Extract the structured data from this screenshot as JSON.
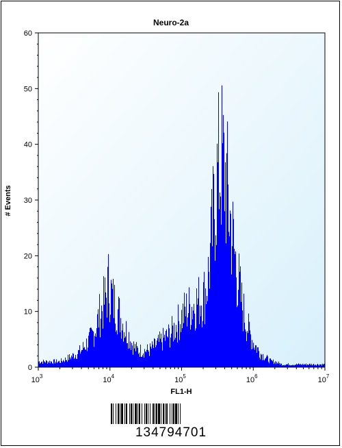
{
  "chart_data": {
    "type": "area",
    "title": "Neuro-2a",
    "xlabel": "FL1-H",
    "ylabel": "# Events",
    "xscale": "log",
    "xlim": [
      1000,
      10000000
    ],
    "ylim": [
      0,
      60
    ],
    "yticks": [
      "0",
      "10",
      "20",
      "30",
      "40",
      "50",
      "60"
    ],
    "xticks": [
      {
        "base": "10",
        "exp": "3"
      },
      {
        "base": "10",
        "exp": "4"
      },
      {
        "base": "10",
        "exp": "5"
      },
      {
        "base": "10",
        "exp": "6"
      },
      {
        "base": "10",
        "exp": "7"
      }
    ],
    "fill_color": "#0000ff",
    "background_color": "#e8f6fc",
    "grid": false,
    "series": [
      {
        "x": [
          1000,
          1300,
          1700,
          2000,
          2500,
          3000,
          3500,
          4000,
          4500,
          5000,
          5600,
          6300,
          7000,
          7500,
          8000,
          8500,
          9000,
          9500,
          10000,
          10500,
          11000,
          12000,
          13000,
          14000,
          15000,
          16000,
          18000,
          20000,
          22000,
          25000,
          28000,
          30000,
          35000,
          40000,
          45000,
          50000,
          56000,
          63000,
          70000,
          80000,
          90000,
          100000,
          112000,
          125000,
          140000,
          158000,
          178000,
          200000,
          220000,
          240000,
          260000,
          280000,
          300000,
          320000,
          340000,
          360000,
          380000,
          400000,
          430000,
          460000,
          500000,
          540000,
          580000,
          630000,
          700000,
          800000,
          900000,
          1000000,
          1120000,
          1260000,
          1410000,
          1580000,
          1780000,
          2000000,
          2500000,
          3000000,
          4000000,
          5000000,
          7000000,
          10000000
        ],
        "y": [
          1,
          1,
          1,
          1,
          1.5,
          2,
          2.5,
          3,
          4,
          4.5,
          5.5,
          7,
          9,
          10,
          11,
          12,
          13,
          15,
          14,
          13,
          12,
          11,
          10,
          9,
          8,
          7,
          6,
          4.5,
          3.5,
          3,
          3,
          3,
          3,
          3.5,
          4,
          4.5,
          5,
          5.5,
          6,
          7,
          8,
          9,
          10,
          10.5,
          11,
          11.5,
          12,
          12.5,
          14,
          17,
          22,
          27,
          32,
          34,
          36,
          37,
          36,
          35,
          32,
          28,
          25,
          21,
          18,
          15,
          11,
          8,
          6,
          4.5,
          3.5,
          2.5,
          2,
          1.5,
          1,
          1,
          0.5,
          0.5,
          0.5,
          0.5,
          0.5,
          0.5
        ]
      }
    ]
  },
  "barcode": {
    "text": "134794701"
  }
}
